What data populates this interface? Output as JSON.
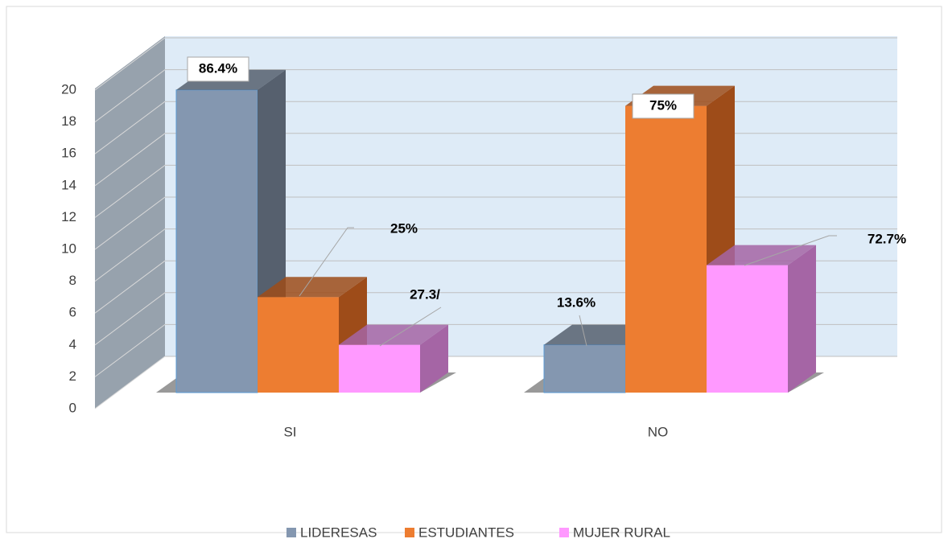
{
  "chart_data": {
    "type": "bar3d",
    "categories": [
      "SI",
      "NO"
    ],
    "series": [
      {
        "name": "LIDERESAS",
        "color": "#8497b0",
        "side": "#56606e",
        "values": [
          19,
          3
        ],
        "percent_labels": [
          "86.4%",
          "13.6%"
        ]
      },
      {
        "name": "ESTUDIANTES",
        "color": "#ed7d31",
        "side": "#9e4c19",
        "values": [
          6,
          18
        ],
        "percent_labels": [
          "25%",
          "75%"
        ]
      },
      {
        "name": "MUJER RURAL",
        "color": "#ff99ff",
        "side": "#a565a5",
        "values": [
          3,
          8
        ],
        "percent_labels": [
          "27.3/",
          "72.7%"
        ]
      }
    ],
    "ylim": [
      0,
      20
    ],
    "yticks": [
      0,
      2,
      4,
      6,
      8,
      10,
      12,
      14,
      16,
      18,
      20
    ],
    "grid": true,
    "legend": "bottom"
  }
}
